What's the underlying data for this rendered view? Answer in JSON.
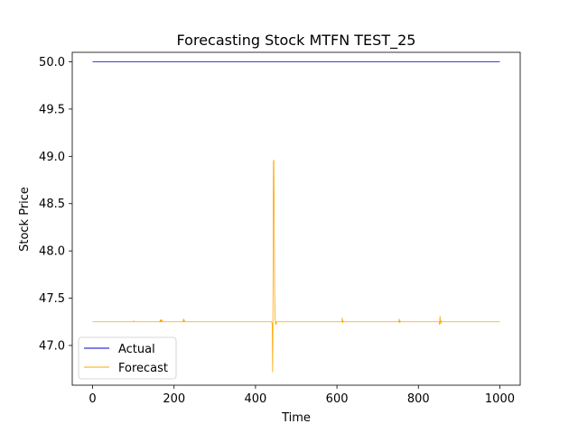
{
  "chart_data": {
    "type": "line",
    "title": "Forecasting Stock MTFN TEST_25",
    "xlabel": "Time",
    "ylabel": "Stock Price",
    "xlim": [
      -50,
      1050
    ],
    "ylim": [
      46.58,
      50.1
    ],
    "xticks": [
      0,
      200,
      400,
      600,
      800,
      1000
    ],
    "yticks": [
      47.0,
      47.5,
      48.0,
      48.5,
      49.0,
      49.5,
      50.0
    ],
    "xtick_labels": [
      "0",
      "200",
      "400",
      "600",
      "800",
      "1000"
    ],
    "ytick_labels": [
      "47.0",
      "47.5",
      "48.0",
      "48.5",
      "49.0",
      "49.5",
      "50.0"
    ],
    "grid": false,
    "legend_position": "lower-left",
    "series": [
      {
        "name": "Actual",
        "color": "#0000cc",
        "x": [
          0,
          1000
        ],
        "values": [
          50.0,
          50.0
        ]
      },
      {
        "name": "Forecast",
        "color": "#ffa500",
        "x": [
          0,
          100,
          101,
          102,
          165,
          166,
          167,
          168,
          169,
          170,
          171,
          172,
          222,
          223,
          224,
          225,
          226,
          440,
          441,
          442,
          443,
          444,
          445,
          446,
          447,
          448,
          449,
          450,
          451,
          452,
          453,
          454,
          612,
          613,
          614,
          615,
          616,
          752,
          753,
          754,
          755,
          756,
          851,
          852,
          853,
          854,
          855,
          856,
          857,
          1000
        ],
        "values": [
          47.25,
          47.25,
          47.26,
          47.25,
          47.25,
          47.27,
          47.25,
          47.27,
          47.25,
          47.27,
          47.26,
          47.25,
          47.25,
          47.28,
          47.25,
          47.27,
          47.25,
          47.25,
          47.22,
          46.72,
          47.5,
          48.95,
          48.96,
          48.3,
          47.6,
          47.3,
          47.24,
          47.22,
          47.25,
          47.24,
          47.25,
          47.25,
          47.25,
          47.29,
          47.24,
          47.26,
          47.25,
          47.25,
          47.28,
          47.24,
          47.26,
          47.25,
          47.25,
          47.22,
          47.31,
          47.26,
          47.23,
          47.26,
          47.25,
          47.25
        ]
      }
    ]
  }
}
